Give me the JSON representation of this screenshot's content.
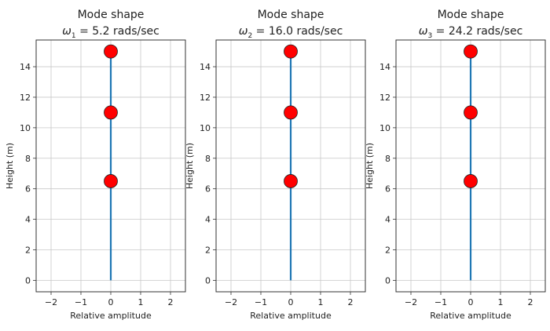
{
  "chart_data": [
    {
      "type": "line",
      "title": "Mode shape",
      "subtitle_symbol": "ω",
      "subtitle_index": "1",
      "subtitle_value": " =  5.2 rads/sec",
      "xlabel": "Relative amplitude",
      "ylabel": "Height (m)",
      "xlim": [
        -2.5,
        2.5
      ],
      "ylim": [
        -0.75,
        15.75
      ],
      "xticks": [
        -2,
        -1,
        0,
        1,
        2
      ],
      "xtick_labels": [
        "−2",
        "−1",
        "0",
        "1",
        "2"
      ],
      "yticks": [
        0,
        2,
        4,
        6,
        8,
        10,
        12,
        14
      ],
      "yticks_labels": [
        "0",
        "2",
        "4",
        "6",
        "8",
        "10",
        "12",
        "14"
      ],
      "grid": true,
      "line": {
        "x": [
          0,
          0,
          0,
          0
        ],
        "y": [
          0,
          6.5,
          11,
          15
        ],
        "color": "#1f77b4"
      },
      "points": {
        "x": [
          0,
          0,
          0
        ],
        "y": [
          6.5,
          11,
          15
        ],
        "color": "#ff0000"
      }
    },
    {
      "type": "line",
      "title": "Mode shape",
      "subtitle_symbol": "ω",
      "subtitle_index": "2",
      "subtitle_value": " =  16.0 rads/sec",
      "xlabel": "Relative amplitude",
      "ylabel": "Height (m)",
      "xlim": [
        -2.5,
        2.5
      ],
      "ylim": [
        -0.75,
        15.75
      ],
      "xticks": [
        -2,
        -1,
        0,
        1,
        2
      ],
      "xtick_labels": [
        "−2",
        "−1",
        "0",
        "1",
        "2"
      ],
      "yticks": [
        0,
        2,
        4,
        6,
        8,
        10,
        12,
        14
      ],
      "yticks_labels": [
        "0",
        "2",
        "4",
        "6",
        "8",
        "10",
        "12",
        "14"
      ],
      "grid": true,
      "line": {
        "x": [
          0,
          0,
          0,
          0
        ],
        "y": [
          0,
          6.5,
          11,
          15
        ],
        "color": "#1f77b4"
      },
      "points": {
        "x": [
          0,
          0,
          0
        ],
        "y": [
          6.5,
          11,
          15
        ],
        "color": "#ff0000"
      }
    },
    {
      "type": "line",
      "title": "Mode shape",
      "subtitle_symbol": "ω",
      "subtitle_index": "3",
      "subtitle_value": " =  24.2 rads/sec",
      "xlabel": "Relative amplitude",
      "ylabel": "Height (m)",
      "xlim": [
        -2.5,
        2.5
      ],
      "ylim": [
        -0.75,
        15.75
      ],
      "xticks": [
        -2,
        -1,
        0,
        1,
        2
      ],
      "xtick_labels": [
        "−2",
        "−1",
        "0",
        "1",
        "2"
      ],
      "yticks": [
        0,
        2,
        4,
        6,
        8,
        10,
        12,
        14
      ],
      "yticks_labels": [
        "0",
        "2",
        "4",
        "6",
        "8",
        "10",
        "12",
        "14"
      ],
      "grid": true,
      "line": {
        "x": [
          0,
          0,
          0,
          0
        ],
        "y": [
          0,
          6.5,
          11,
          15
        ],
        "color": "#1f77b4"
      },
      "points": {
        "x": [
          0,
          0,
          0
        ],
        "y": [
          6.5,
          11,
          15
        ],
        "color": "#ff0000"
      }
    }
  ]
}
